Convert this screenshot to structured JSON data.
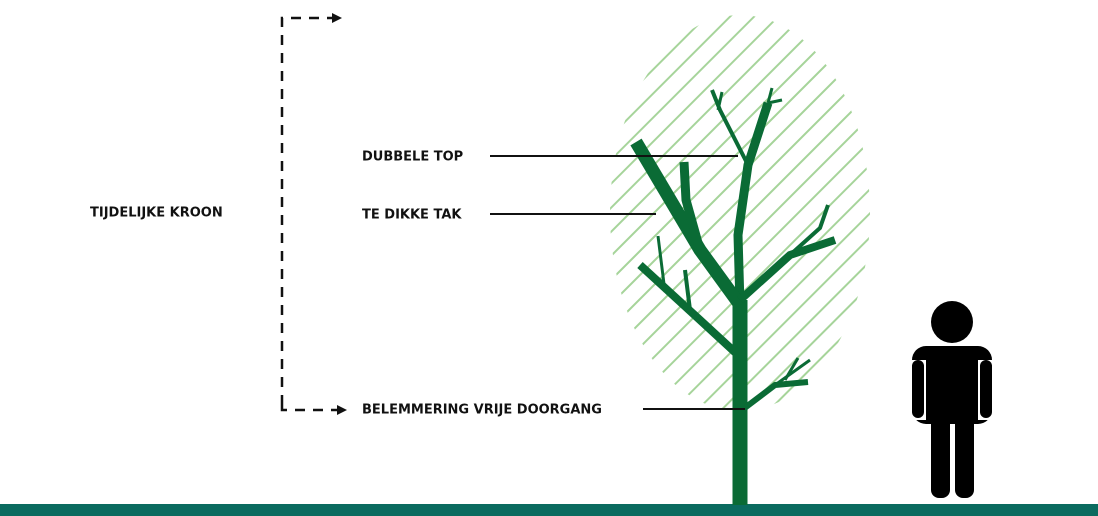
{
  "bracket": {
    "label": "TIJDELIJKE KROON"
  },
  "annotations": [
    {
      "label": "DUBBELE TOP"
    },
    {
      "label": "TE DIKKE TAK"
    },
    {
      "label": "BELEMMERING VRIJE DOORGANG"
    }
  ]
}
